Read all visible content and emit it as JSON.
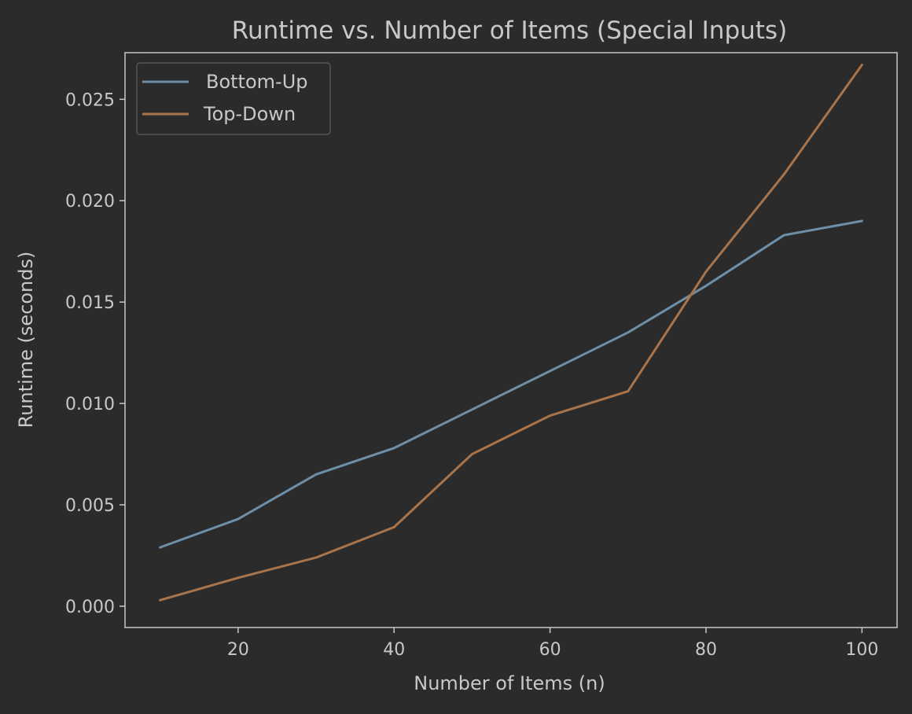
{
  "chart_data": {
    "type": "line",
    "title": "Runtime vs. Number of Items (Special Inputs)",
    "xlabel": "Number of Items (n)",
    "ylabel": "Runtime (seconds)",
    "x": [
      10,
      20,
      30,
      40,
      50,
      60,
      70,
      80,
      90,
      100
    ],
    "xlim": [
      5.5,
      104.5
    ],
    "ylim": [
      -0.00105,
      0.0273
    ],
    "xticks": [
      20,
      40,
      60,
      80,
      100
    ],
    "xtick_labels": [
      "20",
      "40",
      "60",
      "80",
      "100"
    ],
    "yticks": [
      0.0,
      0.005,
      0.01,
      0.015,
      0.02,
      0.025
    ],
    "ytick_labels": [
      "0.000",
      "0.005",
      "0.010",
      "0.015",
      "0.020",
      "0.025"
    ],
    "grid": false,
    "legend_position": "upper left",
    "series": [
      {
        "name": "Bottom-Up",
        "color": "#6e8fa8",
        "values": [
          0.0029,
          0.0043,
          0.0065,
          0.0078,
          0.0097,
          0.0116,
          0.0135,
          0.0158,
          0.0183,
          0.019
        ]
      },
      {
        "name": "Top-Down",
        "color": "#a9744a",
        "values": [
          0.0003,
          0.0014,
          0.0024,
          0.0039,
          0.0075,
          0.0094,
          0.0106,
          0.0165,
          0.0213,
          0.0267
        ]
      }
    ]
  },
  "theme": {
    "background": "#2b2b2b",
    "axes_color": "#c8c8c8",
    "text_color": "#c8c8c8",
    "legend_background": "#2b2b2b",
    "legend_border": "#555555"
  }
}
